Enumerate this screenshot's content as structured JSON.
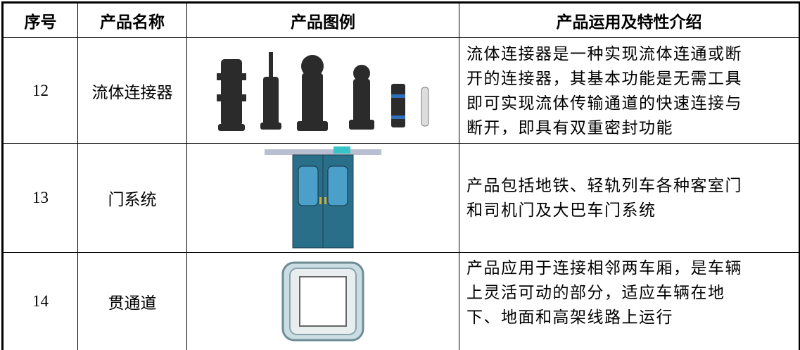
{
  "table": {
    "header": [
      "序号",
      "产品名称",
      "产品图例",
      "产品运用及特性介绍"
    ],
    "rows": [
      {
        "number": "12",
        "name": "流体连接器",
        "description": [
          "流体连接器是一种实现流体连通或断",
          "开的连接器，其基本功能是无需工具",
          "即可实现流体传输通道的快速连接与",
          "断开，即具有双重密封功能"
        ]
      },
      {
        "number": "13",
        "name": "门系统",
        "description": [
          "产品包括地铁、轻轨列车各种客室门",
          "和司机门及大巴车门系统"
        ]
      },
      {
        "number": "14",
        "name": "贯通道",
        "description": [
          "产品应用于连接相邻两车厢，是车辆",
          "上灵活可动的部分，适应车辆在地",
          "下、地面和高架线路上运行"
        ]
      }
    ]
  }
}
